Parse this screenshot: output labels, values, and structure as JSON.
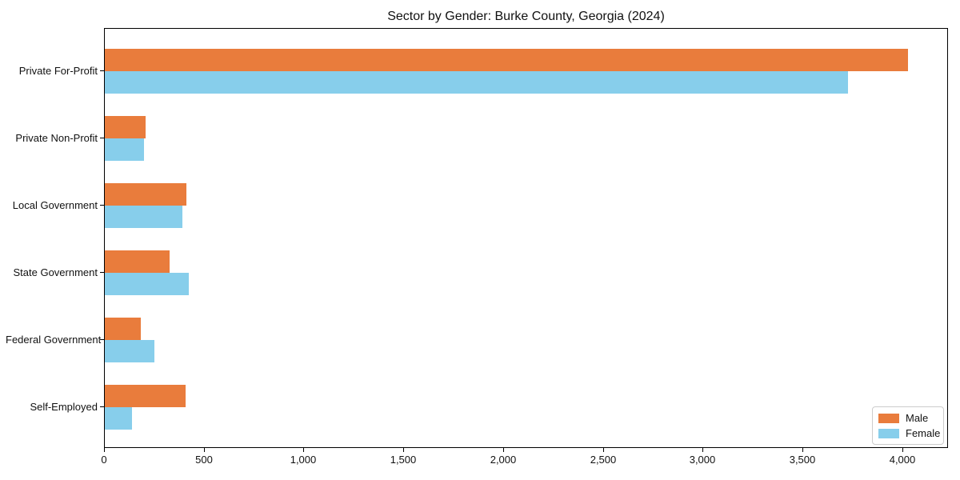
{
  "chart_data": {
    "type": "bar",
    "orientation": "horizontal",
    "title": "Sector by Gender: Burke County, Georgia (2024)",
    "xlabel": "",
    "ylabel": "",
    "categories": [
      "Private For-Profit",
      "Private Non-Profit",
      "Local Government",
      "State Government",
      "Federal Government",
      "Self-Employed"
    ],
    "series": [
      {
        "name": "Male",
        "color": "#E97C3C",
        "values": [
          4025,
          205,
          410,
          325,
          180,
          405
        ]
      },
      {
        "name": "Female",
        "color": "#87CEEB",
        "values": [
          3725,
          198,
          388,
          420,
          250,
          135
        ]
      }
    ],
    "xlim": [
      0,
      4230
    ],
    "x_ticks": [
      0,
      500,
      1000,
      1500,
      2000,
      2500,
      3000,
      3500,
      4000
    ],
    "x_tick_labels": [
      "0",
      "500",
      "1,000",
      "1,500",
      "2,000",
      "2,500",
      "3,000",
      "3,500",
      "4,000"
    ],
    "grid": false,
    "legend_position": "lower right"
  }
}
